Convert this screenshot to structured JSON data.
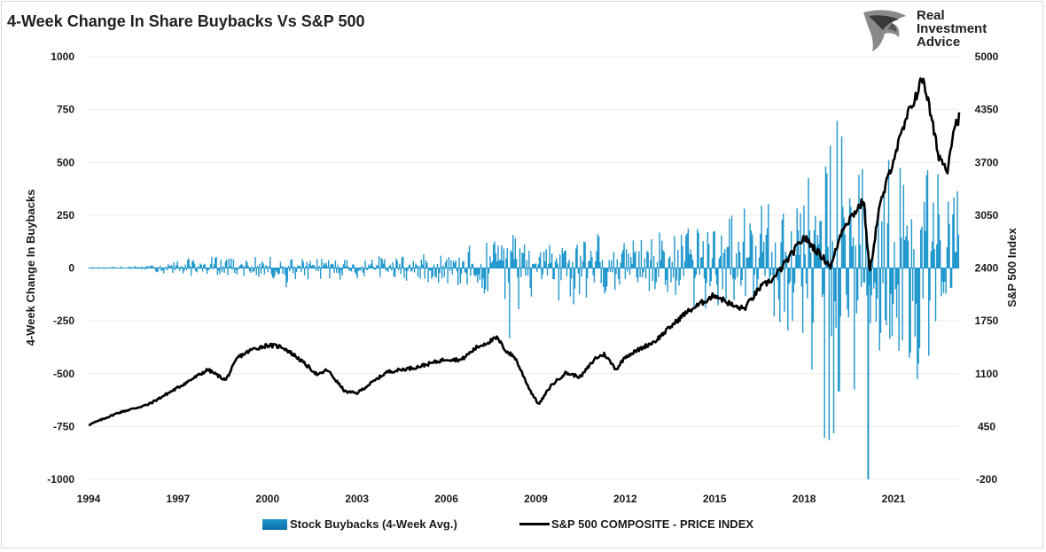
{
  "colors": {
    "buybacks": "#1e96cc",
    "sp500": "#000000",
    "grid": "#ececec",
    "text": "#1a1a1a"
  },
  "logo": {
    "line1": "Real",
    "line2": "Investment",
    "line3": "Advice",
    "icon": "eagle-head-icon"
  },
  "chart_data": {
    "type": "bar",
    "title": "4-Week Change In Share Buybacks Vs S&P 500",
    "xlabel": "",
    "ylabel": "4-Week Change In Buybacks",
    "y2label": "S&P 500 Index",
    "xlim": [
      1994,
      2023.2
    ],
    "ylim": [
      -1000,
      1000
    ],
    "y2lim": [
      -200,
      5000
    ],
    "x_ticks": [
      "1994",
      "1997",
      "2000",
      "2003",
      "2006",
      "2009",
      "2012",
      "2015",
      "2018",
      "2021"
    ],
    "y_ticks": [
      "1000",
      "750",
      "500",
      "250",
      "0",
      "-250",
      "-500",
      "-750",
      "-1000"
    ],
    "y2_ticks": [
      "5000",
      "4350",
      "3700",
      "3050",
      "2400",
      "1750",
      "1100",
      "450",
      "-200"
    ],
    "grid": "horizontal",
    "legend_position": "bottom-center",
    "series": [
      {
        "name": "Stock Buybacks (4-Week Avg.)",
        "kind": "bar",
        "axis": "left",
        "envelope_positive": [
          [
            1994,
            5
          ],
          [
            1996,
            12
          ],
          [
            1997,
            40
          ],
          [
            1998,
            60
          ],
          [
            1999,
            50
          ],
          [
            2000,
            55
          ],
          [
            2002,
            45
          ],
          [
            2004,
            60
          ],
          [
            2006,
            70
          ],
          [
            2007.5,
            150
          ],
          [
            2008,
            200
          ],
          [
            2009,
            110
          ],
          [
            2010,
            150
          ],
          [
            2011,
            200
          ],
          [
            2012,
            120
          ],
          [
            2013,
            180
          ],
          [
            2014,
            200
          ],
          [
            2015,
            280
          ],
          [
            2016,
            300
          ],
          [
            2017,
            360
          ],
          [
            2018,
            420
          ],
          [
            2019,
            720
          ],
          [
            2020,
            550
          ],
          [
            2021,
            600
          ],
          [
            2022,
            560
          ],
          [
            2023,
            450
          ]
        ],
        "envelope_negative": [
          [
            1994,
            -3
          ],
          [
            1996,
            -10
          ],
          [
            1997,
            -45
          ],
          [
            1998,
            -30
          ],
          [
            1999,
            -40
          ],
          [
            2000,
            -50
          ],
          [
            2001,
            -120
          ],
          [
            2002,
            -60
          ],
          [
            2004,
            -50
          ],
          [
            2006,
            -80
          ],
          [
            2007.5,
            -170
          ],
          [
            2008,
            -400
          ],
          [
            2009,
            -120
          ],
          [
            2010,
            -200
          ],
          [
            2011,
            -140
          ],
          [
            2012,
            -100
          ],
          [
            2013,
            -150
          ],
          [
            2014,
            -180
          ],
          [
            2015,
            -220
          ],
          [
            2016,
            -200
          ],
          [
            2017,
            -240
          ],
          [
            2018,
            -450
          ],
          [
            2019,
            -1000
          ],
          [
            2020,
            -430
          ],
          [
            2021,
            -500
          ],
          [
            2022,
            -640
          ],
          [
            2023,
            -320
          ]
        ]
      },
      {
        "name": "S&P 500 COMPOSITE - PRICE INDEX",
        "kind": "line",
        "axis": "right",
        "points": [
          [
            1994,
            470
          ],
          [
            1995,
            620
          ],
          [
            1996,
            720
          ],
          [
            1997,
            930
          ],
          [
            1998,
            1150
          ],
          [
            1998.6,
            1020
          ],
          [
            1999,
            1300
          ],
          [
            1999.5,
            1400
          ],
          [
            2000,
            1450
          ],
          [
            2000.5,
            1430
          ],
          [
            2001,
            1300
          ],
          [
            2001.7,
            1080
          ],
          [
            2002,
            1150
          ],
          [
            2002.6,
            880
          ],
          [
            2003,
            860
          ],
          [
            2003.5,
            990
          ],
          [
            2004,
            1120
          ],
          [
            2005,
            1180
          ],
          [
            2006,
            1280
          ],
          [
            2006.5,
            1270
          ],
          [
            2007,
            1420
          ],
          [
            2007.7,
            1540
          ],
          [
            2008,
            1380
          ],
          [
            2008.3,
            1300
          ],
          [
            2008.8,
            900
          ],
          [
            2009.1,
            720
          ],
          [
            2009.5,
            950
          ],
          [
            2010,
            1110
          ],
          [
            2010.5,
            1060
          ],
          [
            2011,
            1290
          ],
          [
            2011.3,
            1340
          ],
          [
            2011.7,
            1150
          ],
          [
            2012,
            1310
          ],
          [
            2013,
            1500
          ],
          [
            2014,
            1840
          ],
          [
            2015,
            2070
          ],
          [
            2015.7,
            1920
          ],
          [
            2016,
            1900
          ],
          [
            2016.5,
            2150
          ],
          [
            2017,
            2280
          ],
          [
            2018,
            2780
          ],
          [
            2018.9,
            2420
          ],
          [
            2019.3,
            2900
          ],
          [
            2020,
            3230
          ],
          [
            2020.2,
            2330
          ],
          [
            2020.5,
            3100
          ],
          [
            2021,
            3750
          ],
          [
            2021.5,
            4300
          ],
          [
            2022,
            4750
          ],
          [
            2022.5,
            3800
          ],
          [
            2022.8,
            3600
          ],
          [
            2023,
            4100
          ],
          [
            2023.5,
            4500
          ],
          [
            2024,
            4780
          ]
        ]
      }
    ]
  }
}
